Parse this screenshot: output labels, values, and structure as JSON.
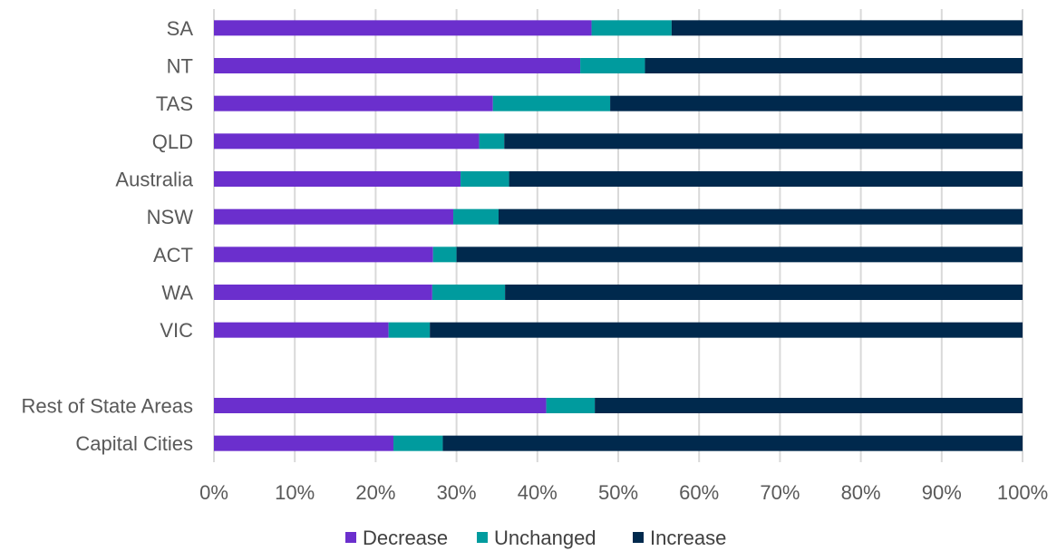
{
  "chart_data": {
    "type": "bar",
    "orientation": "horizontal",
    "stacked": "percent",
    "categories": [
      "SA",
      "NT",
      "TAS",
      "QLD",
      "Australia",
      "NSW",
      "ACT",
      "WA",
      "VIC",
      "",
      "Rest of State Areas",
      "Capital Cities"
    ],
    "series": [
      {
        "name": "Decrease",
        "color": "#6b2fcd",
        "values": [
          46.7,
          45.3,
          34.5,
          32.8,
          30.5,
          29.6,
          27.1,
          27.0,
          21.6,
          null,
          41.1,
          22.2
        ]
      },
      {
        "name": "Unchanged",
        "color": "#009b9e",
        "values": [
          9.9,
          8.0,
          14.5,
          3.1,
          6.0,
          5.6,
          2.9,
          9.0,
          5.1,
          null,
          6.0,
          6.1
        ]
      },
      {
        "name": "Increase",
        "color": "#00294d",
        "values": [
          43.4,
          46.7,
          51.0,
          64.1,
          63.5,
          64.8,
          70.0,
          64.0,
          73.3,
          null,
          52.9,
          71.7
        ]
      }
    ],
    "x_ticks": [
      "0%",
      "10%",
      "20%",
      "30%",
      "40%",
      "50%",
      "60%",
      "70%",
      "80%",
      "90%",
      "100%"
    ],
    "xlim": [
      0,
      100
    ],
    "grid": "vertical",
    "legend_position": "bottom",
    "title": "",
    "xlabel": "",
    "ylabel": ""
  }
}
